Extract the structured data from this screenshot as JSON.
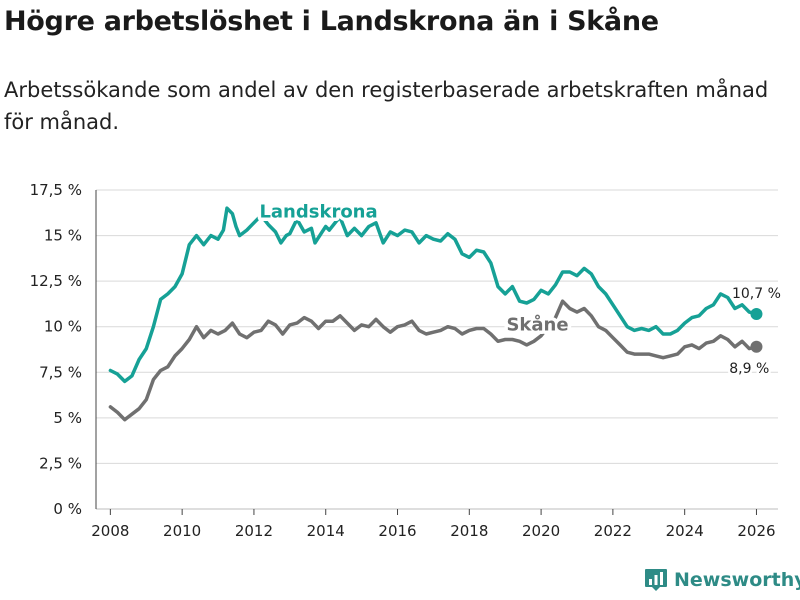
{
  "title": "Högre arbetslöshet i Landskrona än i Skåne",
  "subtitle": "Arbetssökande som andel av den registerbaserade arbetskraften månad för månad.",
  "brand": {
    "name": "Newsworthy",
    "icon": "bar-chart-logo-icon"
  },
  "colors": {
    "landskrona": "#16a196",
    "skane": "#707070",
    "grid": "#d9d9d9",
    "brand": "#2e8b86"
  },
  "chart_data": {
    "type": "line",
    "title": "Högre arbetslöshet i Landskrona än i Skåne",
    "xlabel": "",
    "ylabel": "",
    "xlim": [
      2007.6,
      2026.6
    ],
    "ylim": [
      0,
      17.5
    ],
    "y_ticks": [
      0,
      2.5,
      5,
      7.5,
      10,
      12.5,
      15,
      17.5
    ],
    "y_tick_labels": [
      "0 %",
      "2,5 %",
      "5 %",
      "7,5 %",
      "10 %",
      "12,5 %",
      "15 %",
      "17,5 %"
    ],
    "x_ticks": [
      2008,
      2010,
      2012,
      2014,
      2016,
      2018,
      2020,
      2022,
      2024,
      2026
    ],
    "x_tick_labels": [
      "2008",
      "2010",
      "2012",
      "2014",
      "2016",
      "2018",
      "2020",
      "2022",
      "2024",
      "2026"
    ],
    "grid": true,
    "series": [
      {
        "name": "Landskrona",
        "color": "#16a196",
        "end_label": "10,7 %",
        "points": [
          [
            2008.0,
            7.6
          ],
          [
            2008.2,
            7.4
          ],
          [
            2008.4,
            7.0
          ],
          [
            2008.6,
            7.3
          ],
          [
            2008.8,
            8.2
          ],
          [
            2009.0,
            8.8
          ],
          [
            2009.2,
            10.0
          ],
          [
            2009.4,
            11.5
          ],
          [
            2009.6,
            11.8
          ],
          [
            2009.8,
            12.2
          ],
          [
            2010.0,
            12.9
          ],
          [
            2010.2,
            14.5
          ],
          [
            2010.4,
            15.0
          ],
          [
            2010.6,
            14.5
          ],
          [
            2010.8,
            15.0
          ],
          [
            2011.0,
            14.8
          ],
          [
            2011.15,
            15.3
          ],
          [
            2011.25,
            16.5
          ],
          [
            2011.4,
            16.2
          ],
          [
            2011.5,
            15.5
          ],
          [
            2011.6,
            15.0
          ],
          [
            2011.8,
            15.3
          ],
          [
            2012.0,
            15.7
          ],
          [
            2012.2,
            16.1
          ],
          [
            2012.4,
            15.6
          ],
          [
            2012.6,
            15.2
          ],
          [
            2012.75,
            14.6
          ],
          [
            2012.9,
            15.0
          ],
          [
            2013.0,
            15.1
          ],
          [
            2013.2,
            15.9
          ],
          [
            2013.4,
            15.2
          ],
          [
            2013.6,
            15.4
          ],
          [
            2013.7,
            14.6
          ],
          [
            2013.9,
            15.2
          ],
          [
            2014.0,
            15.5
          ],
          [
            2014.1,
            15.3
          ],
          [
            2014.3,
            15.8
          ],
          [
            2014.4,
            16.0
          ],
          [
            2014.6,
            15.0
          ],
          [
            2014.8,
            15.4
          ],
          [
            2015.0,
            15.0
          ],
          [
            2015.2,
            15.5
          ],
          [
            2015.4,
            15.7
          ],
          [
            2015.6,
            14.6
          ],
          [
            2015.8,
            15.2
          ],
          [
            2016.0,
            15.0
          ],
          [
            2016.2,
            15.3
          ],
          [
            2016.4,
            15.2
          ],
          [
            2016.6,
            14.6
          ],
          [
            2016.8,
            15.0
          ],
          [
            2017.0,
            14.8
          ],
          [
            2017.2,
            14.7
          ],
          [
            2017.4,
            15.1
          ],
          [
            2017.6,
            14.8
          ],
          [
            2017.8,
            14.0
          ],
          [
            2018.0,
            13.8
          ],
          [
            2018.2,
            14.2
          ],
          [
            2018.4,
            14.1
          ],
          [
            2018.6,
            13.5
          ],
          [
            2018.8,
            12.2
          ],
          [
            2019.0,
            11.8
          ],
          [
            2019.2,
            12.2
          ],
          [
            2019.4,
            11.4
          ],
          [
            2019.6,
            11.3
          ],
          [
            2019.8,
            11.5
          ],
          [
            2020.0,
            12.0
          ],
          [
            2020.2,
            11.8
          ],
          [
            2020.4,
            12.3
          ],
          [
            2020.6,
            13.0
          ],
          [
            2020.8,
            13.0
          ],
          [
            2021.0,
            12.8
          ],
          [
            2021.2,
            13.2
          ],
          [
            2021.4,
            12.9
          ],
          [
            2021.6,
            12.2
          ],
          [
            2021.8,
            11.8
          ],
          [
            2022.0,
            11.2
          ],
          [
            2022.2,
            10.6
          ],
          [
            2022.4,
            10.0
          ],
          [
            2022.6,
            9.8
          ],
          [
            2022.8,
            9.9
          ],
          [
            2023.0,
            9.8
          ],
          [
            2023.2,
            10.0
          ],
          [
            2023.4,
            9.6
          ],
          [
            2023.6,
            9.6
          ],
          [
            2023.8,
            9.8
          ],
          [
            2024.0,
            10.2
          ],
          [
            2024.2,
            10.5
          ],
          [
            2024.4,
            10.6
          ],
          [
            2024.6,
            11.0
          ],
          [
            2024.8,
            11.2
          ],
          [
            2025.0,
            11.8
          ],
          [
            2025.2,
            11.6
          ],
          [
            2025.4,
            11.0
          ],
          [
            2025.6,
            11.2
          ],
          [
            2025.8,
            10.8
          ],
          [
            2026.0,
            10.7
          ]
        ]
      },
      {
        "name": "Skåne",
        "color": "#707070",
        "end_label": "8,9 %",
        "points": [
          [
            2008.0,
            5.6
          ],
          [
            2008.2,
            5.3
          ],
          [
            2008.4,
            4.9
          ],
          [
            2008.6,
            5.2
          ],
          [
            2008.8,
            5.5
          ],
          [
            2009.0,
            6.0
          ],
          [
            2009.2,
            7.1
          ],
          [
            2009.4,
            7.6
          ],
          [
            2009.6,
            7.8
          ],
          [
            2009.8,
            8.4
          ],
          [
            2010.0,
            8.8
          ],
          [
            2010.2,
            9.3
          ],
          [
            2010.4,
            10.0
          ],
          [
            2010.6,
            9.4
          ],
          [
            2010.8,
            9.8
          ],
          [
            2011.0,
            9.6
          ],
          [
            2011.2,
            9.8
          ],
          [
            2011.4,
            10.2
          ],
          [
            2011.6,
            9.6
          ],
          [
            2011.8,
            9.4
          ],
          [
            2012.0,
            9.7
          ],
          [
            2012.2,
            9.8
          ],
          [
            2012.4,
            10.3
          ],
          [
            2012.6,
            10.1
          ],
          [
            2012.8,
            9.6
          ],
          [
            2013.0,
            10.1
          ],
          [
            2013.2,
            10.2
          ],
          [
            2013.4,
            10.5
          ],
          [
            2013.6,
            10.3
          ],
          [
            2013.8,
            9.9
          ],
          [
            2014.0,
            10.3
          ],
          [
            2014.2,
            10.3
          ],
          [
            2014.4,
            10.6
          ],
          [
            2014.6,
            10.2
          ],
          [
            2014.8,
            9.8
          ],
          [
            2015.0,
            10.1
          ],
          [
            2015.2,
            10.0
          ],
          [
            2015.4,
            10.4
          ],
          [
            2015.6,
            10.0
          ],
          [
            2015.8,
            9.7
          ],
          [
            2016.0,
            10.0
          ],
          [
            2016.2,
            10.1
          ],
          [
            2016.4,
            10.3
          ],
          [
            2016.6,
            9.8
          ],
          [
            2016.8,
            9.6
          ],
          [
            2017.0,
            9.7
          ],
          [
            2017.2,
            9.8
          ],
          [
            2017.4,
            10.0
          ],
          [
            2017.6,
            9.9
          ],
          [
            2017.8,
            9.6
          ],
          [
            2018.0,
            9.8
          ],
          [
            2018.2,
            9.9
          ],
          [
            2018.4,
            9.9
          ],
          [
            2018.6,
            9.6
          ],
          [
            2018.8,
            9.2
          ],
          [
            2019.0,
            9.3
          ],
          [
            2019.2,
            9.3
          ],
          [
            2019.4,
            9.2
          ],
          [
            2019.6,
            9.0
          ],
          [
            2019.8,
            9.2
          ],
          [
            2020.0,
            9.5
          ],
          [
            2020.2,
            10.0
          ],
          [
            2020.4,
            10.5
          ],
          [
            2020.6,
            11.4
          ],
          [
            2020.8,
            11.0
          ],
          [
            2021.0,
            10.8
          ],
          [
            2021.2,
            11.0
          ],
          [
            2021.4,
            10.6
          ],
          [
            2021.6,
            10.0
          ],
          [
            2021.8,
            9.8
          ],
          [
            2022.0,
            9.4
          ],
          [
            2022.2,
            9.0
          ],
          [
            2022.4,
            8.6
          ],
          [
            2022.6,
            8.5
          ],
          [
            2022.8,
            8.5
          ],
          [
            2023.0,
            8.5
          ],
          [
            2023.2,
            8.4
          ],
          [
            2023.4,
            8.3
          ],
          [
            2023.6,
            8.4
          ],
          [
            2023.8,
            8.5
          ],
          [
            2024.0,
            8.9
          ],
          [
            2024.2,
            9.0
          ],
          [
            2024.4,
            8.8
          ],
          [
            2024.6,
            9.1
          ],
          [
            2024.8,
            9.2
          ],
          [
            2025.0,
            9.5
          ],
          [
            2025.2,
            9.3
          ],
          [
            2025.4,
            8.9
          ],
          [
            2025.6,
            9.2
          ],
          [
            2025.8,
            8.8
          ],
          [
            2026.0,
            8.9
          ]
        ]
      }
    ]
  }
}
